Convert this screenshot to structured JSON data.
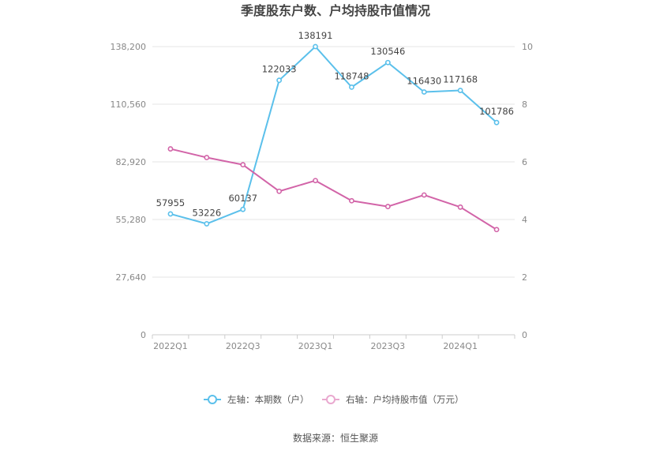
{
  "chart_data": {
    "type": "line",
    "title": "季度股东户数、户均持股市值情况",
    "source": "数据来源：恒生聚源",
    "x": [
      "2022Q1",
      "2022Q2",
      "2022Q3",
      "2022Q4",
      "2023Q1",
      "2023Q2",
      "2023Q3",
      "2023Q4",
      "2024Q1",
      "2024Q2"
    ],
    "x_tick_labels": [
      "2022Q1",
      "2022Q3",
      "2023Q1",
      "2023Q3",
      "2024Q1"
    ],
    "left_axis": {
      "min": 0,
      "max": 138200,
      "ticks": [
        "0",
        "27,640",
        "55,280",
        "82,920",
        "110,560",
        "138,200"
      ]
    },
    "right_axis": {
      "min": 0,
      "max": 10,
      "ticks": [
        "0",
        "2",
        "4",
        "6",
        "8",
        "10"
      ]
    },
    "series": [
      {
        "name": "左轴：本期数（户）",
        "axis": "left",
        "color": "#5bc0eb",
        "values": [
          57955,
          53226,
          60137,
          122033,
          138191,
          118748,
          130546,
          116430,
          117168,
          101786
        ],
        "labels": [
          "57955",
          "53226",
          "60137",
          "122033",
          "138191",
          "118748",
          "130546",
          "116430",
          "117168",
          "101786"
        ]
      },
      {
        "name": "右轴：户均持股市值（万元）",
        "axis": "right",
        "color": "#d264a8",
        "values": [
          6.45,
          6.15,
          5.9,
          4.98,
          5.35,
          4.65,
          4.45,
          4.85,
          4.43,
          3.65
        ]
      }
    ],
    "grid": true,
    "legend_position": "bottom"
  }
}
